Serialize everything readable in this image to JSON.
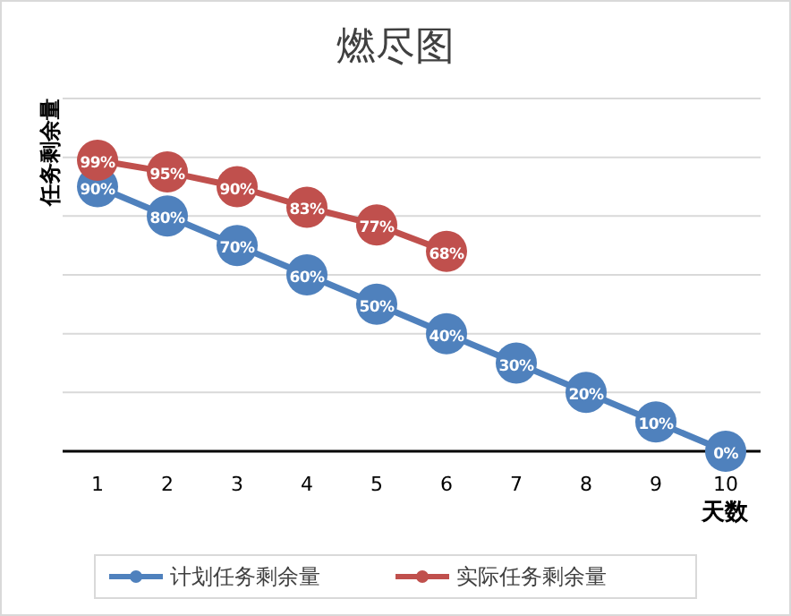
{
  "chart_data": {
    "type": "line",
    "title": "燃尽图",
    "xlabel": "天数",
    "ylabel": "任务剩余量",
    "categories": [
      "1",
      "2",
      "3",
      "4",
      "5",
      "6",
      "7",
      "8",
      "9",
      "10"
    ],
    "series": [
      {
        "name": "计划任务剩余量",
        "color": "#4f81bd",
        "values": [
          90,
          80,
          70,
          60,
          50,
          40,
          30,
          20,
          10,
          0
        ],
        "value_labels": [
          "90%",
          "80%",
          "70%",
          "60%",
          "50%",
          "40%",
          "30%",
          "20%",
          "10%",
          "0%"
        ]
      },
      {
        "name": "实际任务剩余量",
        "color": "#c0504d",
        "values": [
          99,
          95,
          90,
          83,
          77,
          68,
          null,
          null,
          null,
          null
        ],
        "value_labels": [
          "99%",
          "95%",
          "90%",
          "83%",
          "77%",
          "68%",
          null,
          null,
          null,
          null
        ]
      }
    ],
    "ylim": [
      0,
      120
    ],
    "yticks": [
      {
        "value": 0,
        "label": null
      },
      {
        "value": 20,
        "label": null
      },
      {
        "value": 40,
        "label": null
      },
      {
        "value": 60,
        "label": null
      },
      {
        "value": 80,
        "label": null
      },
      {
        "value": 100,
        "label": null
      },
      {
        "value": 120,
        "label": null
      }
    ],
    "tick_labels": "x",
    "grid": "y",
    "legend": "bottom",
    "marker": "circle",
    "line_style": "solid"
  }
}
